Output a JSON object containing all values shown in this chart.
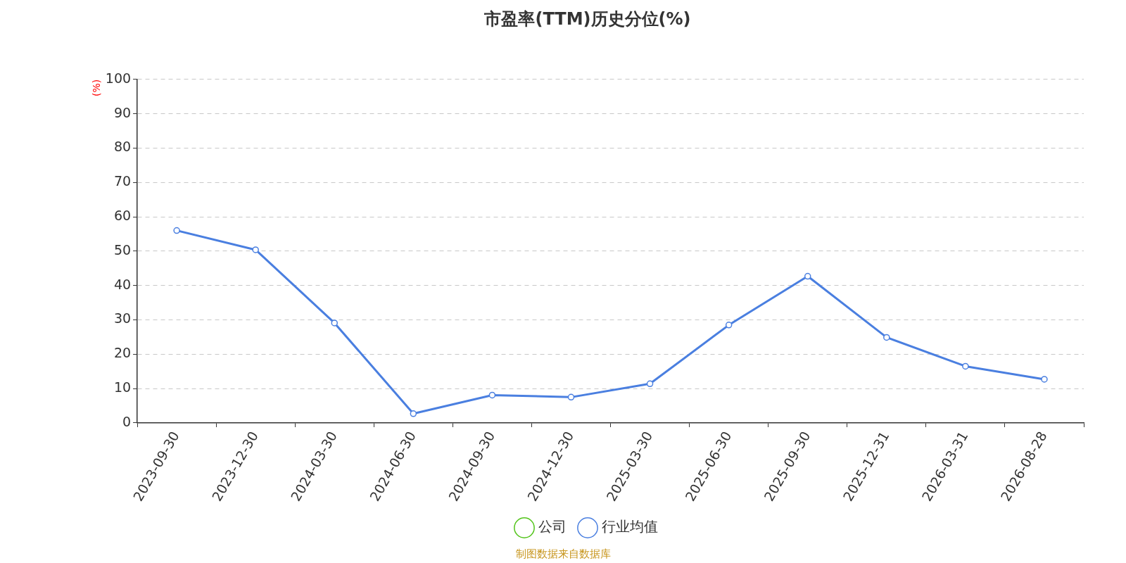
{
  "chart_data": {
    "type": "line",
    "title": "市盈率(TTM)历史分位(%)",
    "ylabel": "(%)",
    "categories": [
      "2023-09-30",
      "2023-12-30",
      "2024-03-30",
      "2024-06-30",
      "2024-09-30",
      "2024-12-30",
      "2025-03-30",
      "2025-06-30",
      "2025-09-30",
      "2025-12-31",
      "2026-03-31",
      "2026-08-28"
    ],
    "series": [
      {
        "name": "公司",
        "color": "#52c41a",
        "values": [
          null,
          null,
          null,
          null,
          null,
          null,
          null,
          null,
          null,
          null,
          null,
          null
        ]
      },
      {
        "name": "行业均值",
        "color": "#4a7fe0",
        "values": [
          56.0,
          50.4,
          29.1,
          2.7,
          8.1,
          7.5,
          11.4,
          28.5,
          42.7,
          24.9,
          16.5,
          12.7
        ]
      }
    ],
    "ylim": [
      0,
      100
    ],
    "yticks": [
      0,
      10,
      20,
      30,
      40,
      50,
      60,
      70,
      80,
      90,
      100
    ],
    "grid": "y",
    "legend": "bottom",
    "marker": "circle",
    "line_style": "solid",
    "annotations": [
      "制图数据来自数据库"
    ]
  }
}
